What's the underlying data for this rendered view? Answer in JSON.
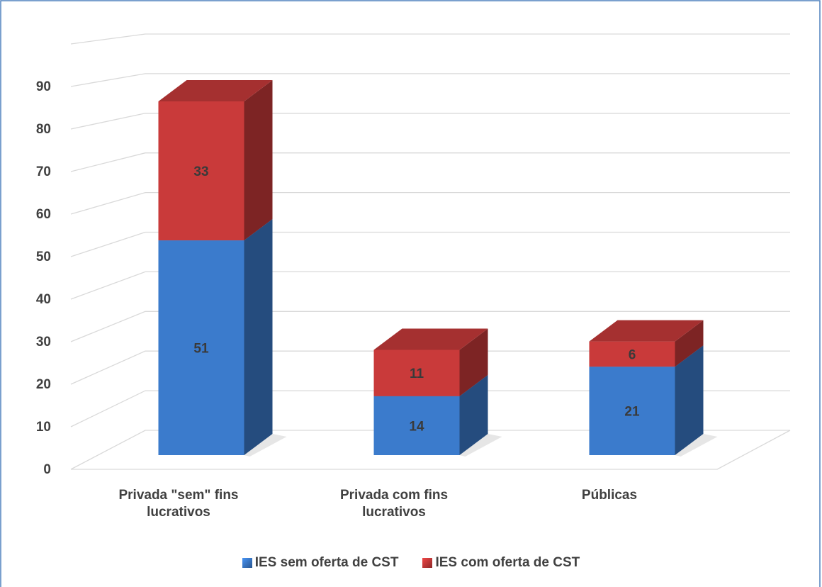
{
  "chart_data": {
    "type": "bar3d_stacked",
    "categories": [
      "Privada \"sem\" fins lucrativos",
      "Privada com fins lucrativos",
      "Públicas"
    ],
    "series": [
      {
        "name": "IES sem oferta de CST",
        "color": "#3b7bcc",
        "values": [
          51,
          14,
          21
        ]
      },
      {
        "name": "IES com oferta de CST",
        "color": "#c93a3a",
        "values": [
          33,
          11,
          6
        ]
      }
    ],
    "ylim": [
      0,
      100
    ],
    "yticks": [
      0,
      10,
      20,
      30,
      40,
      50,
      60,
      70,
      80,
      90
    ],
    "grid": true,
    "legend": "bottom"
  }
}
